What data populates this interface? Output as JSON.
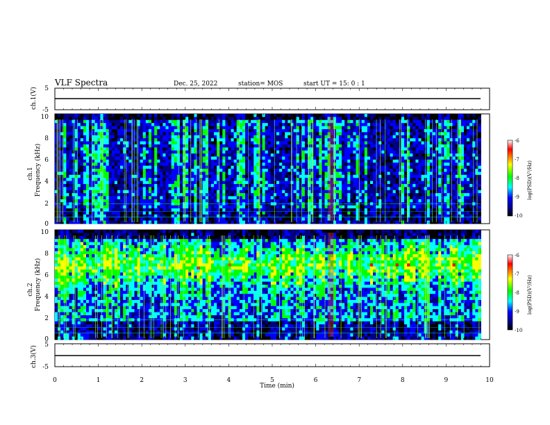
{
  "header": {
    "title": "VLF Spectra",
    "date": "Dec. 25, 2022",
    "station": "station= MOS",
    "start": "start  UT =   15: 0  : 1"
  },
  "chart_data": [
    {
      "type": "line",
      "name": "ch1-voltage",
      "ylabel": "ch.1(V)",
      "yticks": [
        "5",
        "-5"
      ],
      "ylim": [
        -5,
        5
      ],
      "x": [
        0,
        10
      ],
      "values": [
        -1.5,
        -1.5
      ]
    },
    {
      "type": "heatmap",
      "name": "ch1-spectrogram",
      "ylabel_line1": "ch.1",
      "ylabel_line2": "Frequency (kHz)",
      "yticks": [
        "0",
        "2",
        "4",
        "6",
        "8",
        "10"
      ],
      "ylim": [
        0,
        10
      ],
      "xlim": [
        0,
        9.8
      ],
      "colorbar": {
        "label": "log(PSD)(V²/Hz)",
        "ticks": [
          "-6",
          "-7",
          "-8",
          "-9",
          "-10"
        ],
        "range": [
          -10,
          -6
        ],
        "colors": [
          "#ffffff",
          "#ff0000",
          "#ffff00",
          "#00ff00",
          "#00ffff",
          "#0000ff",
          "#000080",
          "#000000"
        ]
      }
    },
    {
      "type": "heatmap",
      "name": "ch2-spectrogram",
      "ylabel_line1": "ch.2",
      "ylabel_line2": "Frequency (kHz)",
      "yticks": [
        "0",
        "2",
        "4",
        "6",
        "8",
        "10"
      ],
      "ylim": [
        0,
        10
      ],
      "xlim": [
        0,
        9.8
      ],
      "colorbar": {
        "label": "log(PSD)(V²/Hz)",
        "ticks": [
          "-6",
          "-7",
          "-8",
          "-9",
          "-10"
        ],
        "range": [
          -10,
          -6
        ],
        "colors": [
          "#ffffff",
          "#ff0000",
          "#ffff00",
          "#00ff00",
          "#00ffff",
          "#0000ff",
          "#000080",
          "#000000"
        ]
      }
    },
    {
      "type": "line",
      "name": "ch3-voltage",
      "ylabel": "ch.3(V)",
      "yticks": [
        "5",
        "-5"
      ],
      "ylim": [
        -5,
        5
      ],
      "x": [
        0,
        10
      ],
      "values": [
        -1.5,
        -1.5
      ]
    }
  ],
  "xaxis": {
    "label": "Time (min)",
    "ticks": [
      "0",
      "1",
      "2",
      "3",
      "4",
      "5",
      "6",
      "7",
      "8",
      "9",
      "10"
    ],
    "range": [
      0,
      10
    ]
  }
}
